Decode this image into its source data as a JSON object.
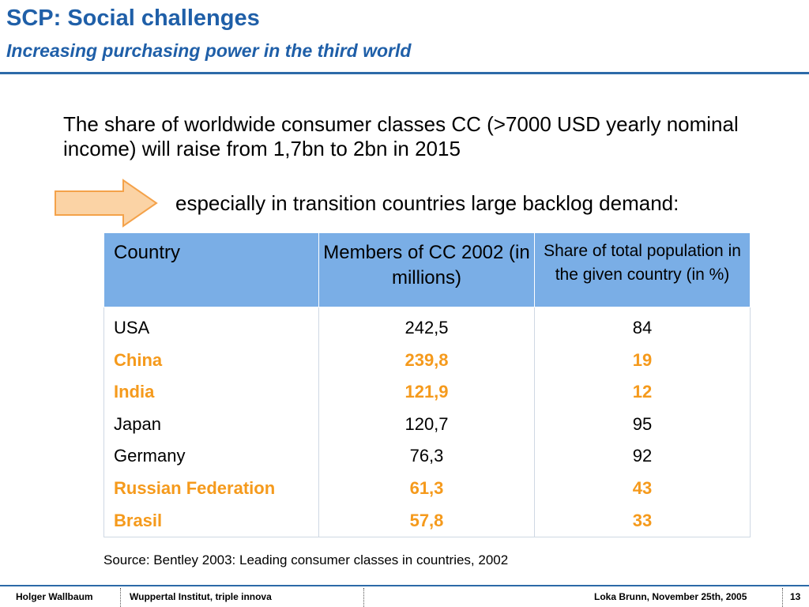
{
  "header": {
    "title": "SCP: Social challenges",
    "subtitle": "Increasing purchasing power in the third world"
  },
  "intro": {
    "text": "The share of worldwide consumer classes CC (>7000 USD yearly nominal income) will raise from 1,7bn to 2bn in 2015"
  },
  "arrow_text": "especially in transition countries large backlog demand:",
  "table": {
    "headers": [
      "Country",
      "Members of CC 2002 (in millions)",
      "Share of total population in the given country (in %)"
    ],
    "rows": [
      {
        "country": "USA",
        "members": "242,5",
        "share": "84",
        "highlight": false
      },
      {
        "country": "China",
        "members": "239,8",
        "share": "19",
        "highlight": true
      },
      {
        "country": "India",
        "members": "121,9",
        "share": "12",
        "highlight": true
      },
      {
        "country": "Japan",
        "members": "120,7",
        "share": "95",
        "highlight": false
      },
      {
        "country": "Germany",
        "members": "76,3",
        "share": "92",
        "highlight": false
      },
      {
        "country": "Russian Federation",
        "members": "61,3",
        "share": "43",
        "highlight": true
      },
      {
        "country": "Brasil",
        "members": "57,8",
        "share": "33",
        "highlight": true
      }
    ]
  },
  "source": "Source: Bentley 2003: Leading consumer classes in countries, 2002",
  "footer": {
    "author": "Holger Wallbaum",
    "institute": "Wuppertal Institut, triple innova",
    "event": "Loka Brunn, November 25th, 2005",
    "page": "13"
  },
  "colors": {
    "title": "#1f5fa8",
    "header_bg": "#7aaee6",
    "highlight": "#f59a1c",
    "arrow_fill": "#fbd3a5",
    "arrow_stroke": "#f4a24a"
  }
}
